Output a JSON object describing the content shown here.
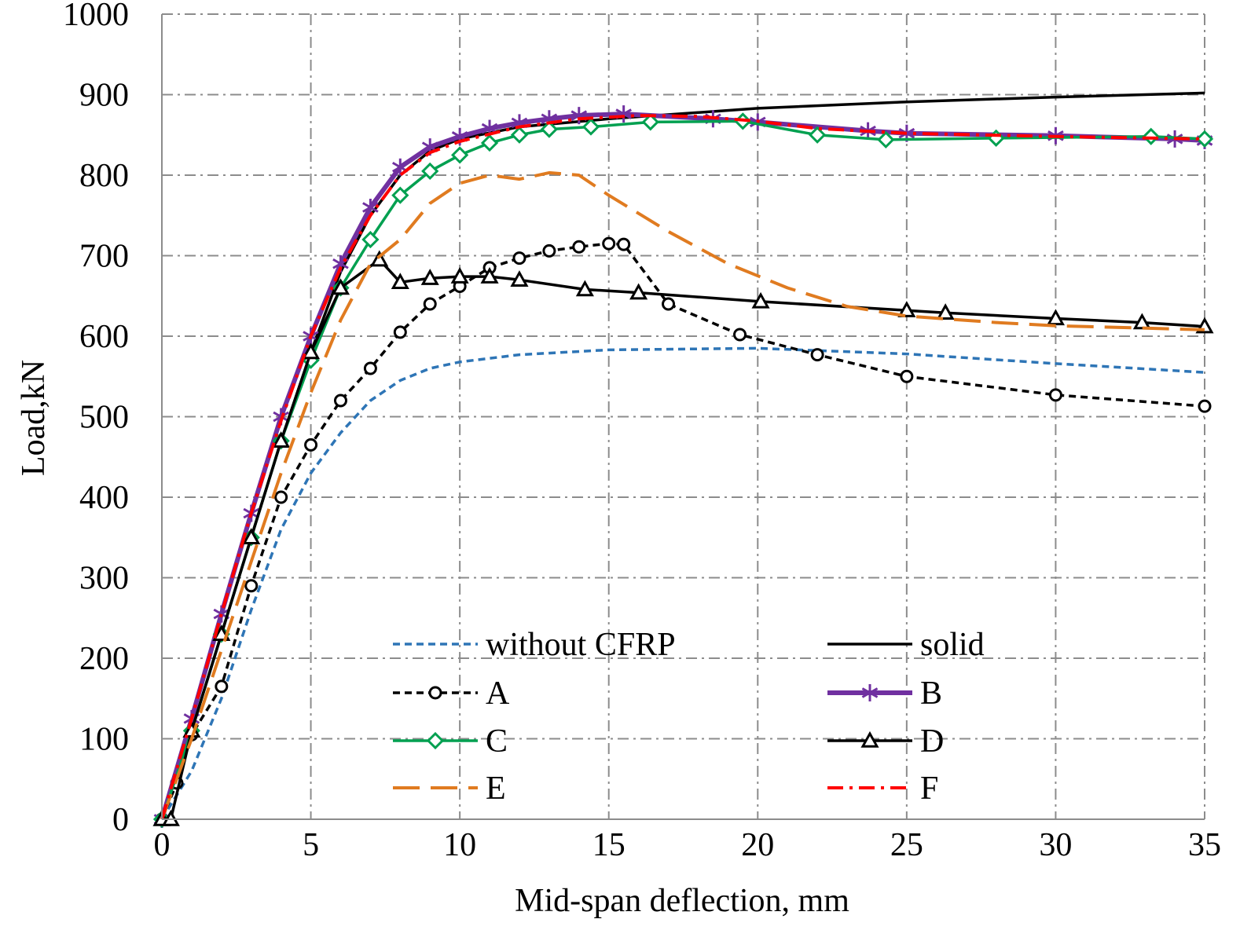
{
  "chart_data": {
    "type": "line",
    "title": "",
    "xlabel": "Mid-span deflection, mm",
    "ylabel": "Load,kN",
    "xlim": [
      0,
      35
    ],
    "ylim": [
      0,
      1000
    ],
    "xticks": [
      0,
      5,
      10,
      15,
      20,
      25,
      30,
      35
    ],
    "yticks": [
      0,
      100,
      200,
      300,
      400,
      500,
      600,
      700,
      800,
      900,
      1000
    ],
    "grid": true,
    "legend_position": "bottom-center, two columns",
    "series": [
      {
        "name": "without CFRP",
        "color": "#2e75b6",
        "style": "short-dash",
        "marker": "none",
        "points": [
          [
            0,
            0
          ],
          [
            1,
            60
          ],
          [
            2,
            150
          ],
          [
            3,
            260
          ],
          [
            4,
            360
          ],
          [
            5,
            430
          ],
          [
            6,
            480
          ],
          [
            7,
            520
          ],
          [
            8,
            545
          ],
          [
            9,
            560
          ],
          [
            10,
            568
          ],
          [
            12,
            577
          ],
          [
            15,
            583
          ],
          [
            20,
            585
          ],
          [
            25,
            578
          ],
          [
            30,
            566
          ],
          [
            35,
            555
          ]
        ]
      },
      {
        "name": "solid",
        "color": "#000000",
        "style": "solid",
        "marker": "none",
        "points": [
          [
            0,
            0
          ],
          [
            1,
            110
          ],
          [
            2,
            230
          ],
          [
            3,
            350
          ],
          [
            4,
            470
          ],
          [
            5,
            580
          ],
          [
            6,
            680
          ],
          [
            7,
            750
          ],
          [
            8,
            800
          ],
          [
            9,
            830
          ],
          [
            10,
            845
          ],
          [
            12,
            860
          ],
          [
            15,
            870
          ],
          [
            20,
            883
          ],
          [
            25,
            891
          ],
          [
            30,
            897
          ],
          [
            35,
            902
          ]
        ]
      },
      {
        "name": "A",
        "color": "#000000",
        "style": "short-dash",
        "marker": "circle",
        "points": [
          [
            0,
            0
          ],
          [
            0.5,
            45
          ],
          [
            1,
            105
          ],
          [
            2,
            165
          ],
          [
            3,
            290
          ],
          [
            4,
            400
          ],
          [
            5,
            465
          ],
          [
            6,
            520
          ],
          [
            7,
            560
          ],
          [
            8,
            605
          ],
          [
            9,
            640
          ],
          [
            10,
            662
          ],
          [
            11,
            685
          ],
          [
            12,
            697
          ],
          [
            13,
            706
          ],
          [
            14,
            711
          ],
          [
            15,
            715
          ],
          [
            15.5,
            714
          ],
          [
            17,
            640
          ],
          [
            19.4,
            602
          ],
          [
            22,
            577
          ],
          [
            25,
            550
          ],
          [
            30,
            527
          ],
          [
            35,
            513
          ]
        ]
      },
      {
        "name": "B",
        "color": "#7030a0",
        "style": "solid-thick",
        "marker": "asterisk",
        "points": [
          [
            0,
            0
          ],
          [
            1,
            125
          ],
          [
            2,
            255
          ],
          [
            3,
            380
          ],
          [
            4,
            500
          ],
          [
            5,
            600
          ],
          [
            6,
            690
          ],
          [
            7,
            760
          ],
          [
            8,
            810
          ],
          [
            9,
            835
          ],
          [
            10,
            848
          ],
          [
            11,
            858
          ],
          [
            12,
            865
          ],
          [
            13,
            870
          ],
          [
            14,
            874
          ],
          [
            15.5,
            876
          ],
          [
            18.5,
            870
          ],
          [
            20,
            866
          ],
          [
            23.7,
            855
          ],
          [
            25,
            852
          ],
          [
            30,
            849
          ],
          [
            34,
            845
          ],
          [
            35,
            843
          ]
        ]
      },
      {
        "name": "C",
        "color": "#00a050",
        "style": "solid",
        "marker": "diamond",
        "points": [
          [
            0,
            0
          ],
          [
            1,
            110
          ],
          [
            2,
            230
          ],
          [
            3,
            350
          ],
          [
            4,
            470
          ],
          [
            5,
            570
          ],
          [
            6,
            660
          ],
          [
            7,
            720
          ],
          [
            8,
            775
          ],
          [
            9,
            805
          ],
          [
            10,
            825
          ],
          [
            11,
            840
          ],
          [
            12,
            850
          ],
          [
            13,
            857
          ],
          [
            14.4,
            860
          ],
          [
            16.4,
            866
          ],
          [
            19.5,
            867
          ],
          [
            22,
            850
          ],
          [
            24.3,
            844
          ],
          [
            28,
            846
          ],
          [
            33.2,
            848
          ],
          [
            35,
            845
          ]
        ]
      },
      {
        "name": "D",
        "color": "#000000",
        "style": "solid",
        "marker": "triangle",
        "points": [
          [
            0,
            0
          ],
          [
            0.3,
            0
          ],
          [
            1,
            110
          ],
          [
            2,
            230
          ],
          [
            3,
            350
          ],
          [
            4,
            470
          ],
          [
            5,
            580
          ],
          [
            6,
            660
          ],
          [
            7.3,
            695
          ],
          [
            8,
            667
          ],
          [
            9,
            672
          ],
          [
            10,
            674
          ],
          [
            11,
            674
          ],
          [
            12,
            670
          ],
          [
            14.2,
            658
          ],
          [
            16,
            654
          ],
          [
            20.1,
            643
          ],
          [
            25,
            632
          ],
          [
            26.3,
            629
          ],
          [
            30,
            622
          ],
          [
            32.9,
            617
          ],
          [
            35,
            612
          ]
        ]
      },
      {
        "name": "E",
        "color": "#e07b20",
        "style": "long-dash",
        "marker": "none",
        "points": [
          [
            0,
            0
          ],
          [
            1,
            100
          ],
          [
            2,
            210
          ],
          [
            3,
            320
          ],
          [
            4,
            430
          ],
          [
            5,
            530
          ],
          [
            6,
            620
          ],
          [
            7,
            690
          ],
          [
            8,
            720
          ],
          [
            9,
            765
          ],
          [
            10,
            790
          ],
          [
            11,
            800
          ],
          [
            12,
            795
          ],
          [
            13,
            803
          ],
          [
            14,
            800
          ],
          [
            15,
            775
          ],
          [
            17,
            730
          ],
          [
            19,
            690
          ],
          [
            21,
            660
          ],
          [
            23,
            637
          ],
          [
            25,
            625
          ],
          [
            28,
            617
          ],
          [
            30,
            613
          ],
          [
            35,
            608
          ]
        ]
      },
      {
        "name": "F",
        "color": "#ff0000",
        "style": "dash-dot",
        "marker": "none",
        "points": [
          [
            0,
            0
          ],
          [
            1,
            125
          ],
          [
            2,
            255
          ],
          [
            3,
            380
          ],
          [
            4,
            495
          ],
          [
            5,
            600
          ],
          [
            6,
            685
          ],
          [
            7,
            750
          ],
          [
            8,
            800
          ],
          [
            9,
            828
          ],
          [
            10,
            842
          ],
          [
            12,
            860
          ],
          [
            14,
            870
          ],
          [
            16,
            874
          ],
          [
            18,
            873
          ],
          [
            20,
            867
          ],
          [
            22,
            858
          ],
          [
            25,
            852
          ],
          [
            30,
            848
          ],
          [
            35,
            845
          ]
        ]
      }
    ]
  }
}
